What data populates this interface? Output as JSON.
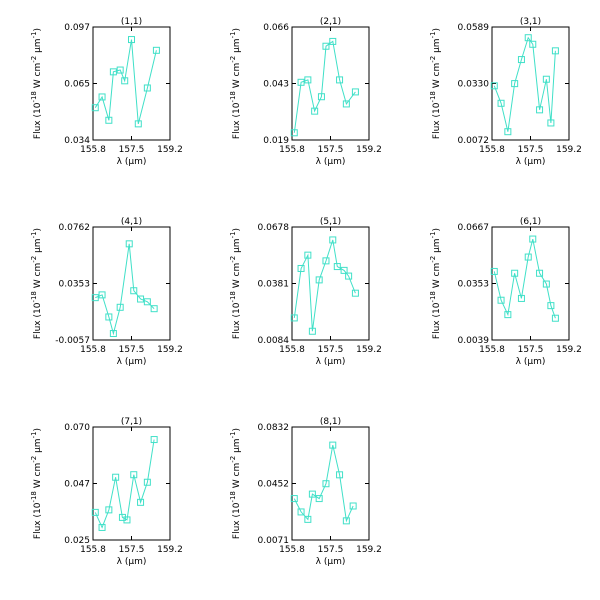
{
  "figure": {
    "background": "#ffffff",
    "line_color": "#40e0c8",
    "axis_color": "#000000"
  },
  "chart_data": [
    {
      "type": "line",
      "title": "(1,1)",
      "xlabel": "λ (μm)",
      "ylabel": "Flux (10^-18 W cm^-2 μm^-1)",
      "xlim": [
        155.8,
        159.2
      ],
      "ylim": [
        0.034,
        0.097
      ],
      "xticks": [
        "155.8",
        "157.5",
        "159.2"
      ],
      "yticks": [
        "0.034",
        "0.065",
        "0.097"
      ],
      "series": [
        {
          "x": [
            155.9,
            156.2,
            156.5,
            156.7,
            157.0,
            157.2,
            157.5,
            157.8,
            158.2,
            158.6
          ],
          "y": [
            0.052,
            0.058,
            0.045,
            0.072,
            0.073,
            0.067,
            0.09,
            0.043,
            0.063,
            0.084
          ]
        }
      ]
    },
    {
      "type": "line",
      "title": "(2,1)",
      "xlabel": "λ (μm)",
      "ylabel": "Flux (10^-18 W cm^-2 μm^-1)",
      "xlim": [
        155.8,
        159.2
      ],
      "ylim": [
        0.019,
        0.066
      ],
      "xticks": [
        "155.8",
        "157.5",
        "159.2"
      ],
      "yticks": [
        "0.019",
        "0.043",
        "0.066"
      ],
      "series": [
        {
          "x": [
            155.9,
            156.2,
            156.5,
            156.8,
            157.1,
            157.3,
            157.6,
            157.9,
            158.2,
            158.6
          ],
          "y": [
            0.022,
            0.043,
            0.044,
            0.031,
            0.037,
            0.058,
            0.06,
            0.044,
            0.034,
            0.039
          ]
        }
      ]
    },
    {
      "type": "line",
      "title": "(3,1)",
      "xlabel": "λ (μm)",
      "ylabel": "Flux (10^-18 W cm^-2 μm^-1)",
      "xlim": [
        155.8,
        159.2
      ],
      "ylim": [
        0.0072,
        0.0589
      ],
      "xticks": [
        "155.8",
        "157.5",
        "159.2"
      ],
      "yticks": [
        "0.0072",
        "0.0330",
        "0.0589"
      ],
      "series": [
        {
          "x": [
            155.9,
            156.2,
            156.5,
            156.8,
            157.1,
            157.4,
            157.6,
            157.9,
            158.2,
            158.4,
            158.6
          ],
          "y": [
            0.032,
            0.024,
            0.011,
            0.033,
            0.044,
            0.054,
            0.051,
            0.021,
            0.035,
            0.015,
            0.048
          ]
        }
      ]
    },
    {
      "type": "line",
      "title": "(4,1)",
      "xlabel": "λ (μm)",
      "ylabel": "Flux (10^-18 W cm^-2 μm^-1)",
      "xlim": [
        155.8,
        159.2
      ],
      "ylim": [
        -0.0057,
        0.0762
      ],
      "xticks": [
        "155.8",
        "157.5",
        "159.2"
      ],
      "yticks": [
        "-0.0057",
        "0.0353",
        "0.0762"
      ],
      "series": [
        {
          "x": [
            155.9,
            156.2,
            156.5,
            156.7,
            157.0,
            157.4,
            157.6,
            157.9,
            158.2,
            158.5
          ],
          "y": [
            0.025,
            0.027,
            0.011,
            -0.001,
            0.018,
            0.064,
            0.03,
            0.024,
            0.022,
            0.017
          ]
        }
      ]
    },
    {
      "type": "line",
      "title": "(5,1)",
      "xlabel": "λ (μm)",
      "ylabel": "Flux (10^-18 W cm^-2 μm^-1)",
      "xlim": [
        155.8,
        159.2
      ],
      "ylim": [
        0.0084,
        0.0678
      ],
      "xticks": [
        "155.8",
        "157.5",
        "159.2"
      ],
      "yticks": [
        "0.0084",
        "0.0381",
        "0.0678"
      ],
      "series": [
        {
          "x": [
            155.9,
            156.2,
            156.5,
            156.7,
            157.0,
            157.3,
            157.6,
            157.8,
            158.1,
            158.3,
            158.6
          ],
          "y": [
            0.02,
            0.046,
            0.053,
            0.013,
            0.04,
            0.05,
            0.061,
            0.047,
            0.045,
            0.042,
            0.033
          ]
        }
      ]
    },
    {
      "type": "line",
      "title": "(6,1)",
      "xlabel": "λ (μm)",
      "ylabel": "Flux (10^-18 W cm^-2 μm^-1)",
      "xlim": [
        155.8,
        159.2
      ],
      "ylim": [
        0.0039,
        0.0667
      ],
      "xticks": [
        "155.8",
        "157.5",
        "159.2"
      ],
      "yticks": [
        "0.0039",
        "0.0353",
        "0.0667"
      ],
      "series": [
        {
          "x": [
            155.9,
            156.2,
            156.5,
            156.8,
            157.1,
            157.4,
            157.6,
            157.9,
            158.2,
            158.4,
            158.6
          ],
          "y": [
            0.042,
            0.026,
            0.018,
            0.041,
            0.027,
            0.05,
            0.06,
            0.041,
            0.035,
            0.023,
            0.016
          ]
        }
      ]
    },
    {
      "type": "line",
      "title": "(7,1)",
      "xlabel": "λ (μm)",
      "ylabel": "Flux (10^-18 W cm^-2 μm^-1)",
      "xlim": [
        155.8,
        159.2
      ],
      "ylim": [
        0.025,
        0.07
      ],
      "xticks": [
        "155.8",
        "157.5",
        "159.2"
      ],
      "yticks": [
        "0.025",
        "0.047",
        "0.070"
      ],
      "series": [
        {
          "x": [
            155.9,
            156.2,
            156.5,
            156.8,
            157.1,
            157.3,
            157.6,
            157.9,
            158.2,
            158.5
          ],
          "y": [
            0.036,
            0.03,
            0.037,
            0.05,
            0.034,
            0.033,
            0.051,
            0.04,
            0.048,
            0.065
          ]
        }
      ]
    },
    {
      "type": "line",
      "title": "(8,1)",
      "xlabel": "λ (μm)",
      "ylabel": "Flux (10^-18 W cm^-2 μm^-1)",
      "xlim": [
        155.8,
        159.2
      ],
      "ylim": [
        0.0071,
        0.0832
      ],
      "xticks": [
        "155.8",
        "157.5",
        "159.2"
      ],
      "yticks": [
        "0.0071",
        "0.0452",
        "0.0832"
      ],
      "series": [
        {
          "x": [
            155.9,
            156.2,
            156.5,
            156.7,
            157.0,
            157.3,
            157.6,
            157.9,
            158.2,
            158.5
          ],
          "y": [
            0.035,
            0.026,
            0.021,
            0.038,
            0.035,
            0.045,
            0.071,
            0.051,
            0.02,
            0.03
          ]
        }
      ]
    }
  ]
}
